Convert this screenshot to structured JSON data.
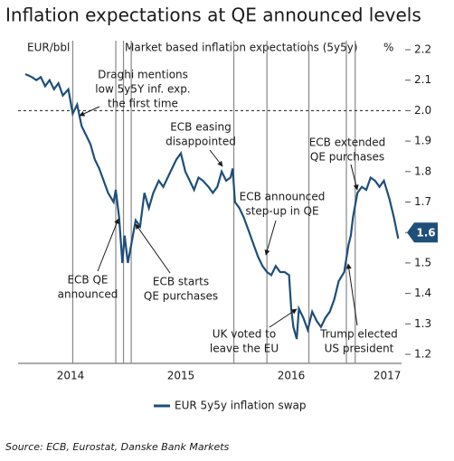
{
  "chart_data": {
    "type": "line",
    "title": "Inflation expectations at QE announced levels",
    "left_label": "EUR/bbl",
    "top_label": "Market based inflation expectations (5y5y)",
    "unit_label": "%",
    "source": "Source: ECB, Eurostat, Danske Bank Markets",
    "xlim": [
      2014.0,
      2017.5
    ],
    "xticks": [
      {
        "value": 2014.5,
        "label": "2014"
      },
      {
        "value": 2015.5,
        "label": "2015"
      },
      {
        "value": 2016.5,
        "label": "2016"
      },
      {
        "value": 2017.37,
        "label": "2017"
      }
    ],
    "ylim": [
      1.2,
      2.2
    ],
    "yticks": [
      2.2,
      2.1,
      {
        "value": 2.0,
        "label": "2.0"
      },
      1.9,
      1.8,
      1.7,
      1.6,
      1.5,
      1.4,
      1.3,
      1.2
    ],
    "reference_line": 2.0,
    "event_lines": [
      2014.52,
      2014.91,
      2014.98,
      2015.05,
      2015.98,
      2016.28,
      2016.66,
      2017.0,
      2017.08
    ],
    "callout": 1.6,
    "annotations": [
      {
        "lines": [
          "Draghi mentions",
          "low 5y5Y inf. exp.",
          "the first time"
        ]
      },
      {
        "lines": [
          "ECB easing",
          "disappointed"
        ]
      },
      {
        "lines": [
          "ECB extended",
          "QE purchases"
        ]
      },
      {
        "lines": [
          "ECB announced",
          "step-up in QE"
        ]
      },
      {
        "lines": [
          "ECB QE",
          "announced"
        ]
      },
      {
        "lines": [
          "ECB starts",
          "QE purchases"
        ]
      },
      {
        "lines": [
          "UK voted to",
          "leave the EU"
        ]
      },
      {
        "lines": [
          "Trump elected",
          "US president"
        ]
      }
    ],
    "series": [
      {
        "name": "EUR 5y5y inflation swap",
        "color": "#1f4e79",
        "x": [
          2014.09,
          2014.15,
          2014.19,
          2014.23,
          2014.27,
          2014.31,
          2014.35,
          2014.39,
          2014.43,
          2014.48,
          2014.52,
          2014.56,
          2014.6,
          2014.64,
          2014.68,
          2014.72,
          2014.76,
          2014.8,
          2014.84,
          2014.89,
          2014.91,
          2014.94,
          2014.97,
          2014.99,
          2015.02,
          2015.05,
          2015.09,
          2015.13,
          2015.17,
          2015.21,
          2015.25,
          2015.3,
          2015.34,
          2015.38,
          2015.42,
          2015.46,
          2015.5,
          2015.54,
          2015.58,
          2015.62,
          2015.66,
          2015.7,
          2015.75,
          2015.79,
          2015.83,
          2015.87,
          2015.91,
          2015.95,
          2015.97,
          2015.99,
          2016.03,
          2016.07,
          2016.11,
          2016.16,
          2016.2,
          2016.24,
          2016.28,
          2016.32,
          2016.36,
          2016.4,
          2016.44,
          2016.48,
          2016.5,
          2016.52,
          2016.55,
          2016.57,
          2016.61,
          2016.65,
          2016.69,
          2016.73,
          2016.77,
          2016.81,
          2016.85,
          2016.89,
          2016.93,
          2016.98,
          2017.02,
          2017.04,
          2017.06,
          2017.1,
          2017.14,
          2017.18,
          2017.22,
          2017.26,
          2017.3,
          2017.34,
          2017.39,
          2017.43,
          2017.47
        ],
        "values": [
          2.12,
          2.11,
          2.1,
          2.11,
          2.08,
          2.1,
          2.07,
          2.09,
          2.05,
          2.07,
          1.99,
          2.02,
          1.95,
          1.92,
          1.89,
          1.84,
          1.81,
          1.77,
          1.73,
          1.7,
          1.74,
          1.65,
          1.5,
          1.59,
          1.5,
          1.56,
          1.64,
          1.62,
          1.73,
          1.68,
          1.73,
          1.77,
          1.75,
          1.78,
          1.81,
          1.84,
          1.86,
          1.8,
          1.77,
          1.74,
          1.78,
          1.77,
          1.75,
          1.73,
          1.75,
          1.8,
          1.77,
          1.78,
          1.81,
          1.7,
          1.68,
          1.65,
          1.61,
          1.56,
          1.52,
          1.49,
          1.47,
          1.46,
          1.49,
          1.47,
          1.47,
          1.46,
          1.35,
          1.29,
          1.25,
          1.35,
          1.32,
          1.28,
          1.34,
          1.31,
          1.29,
          1.32,
          1.34,
          1.38,
          1.44,
          1.47,
          1.56,
          1.59,
          1.65,
          1.73,
          1.75,
          1.74,
          1.78,
          1.77,
          1.75,
          1.77,
          1.71,
          1.65,
          1.58
        ]
      }
    ]
  }
}
